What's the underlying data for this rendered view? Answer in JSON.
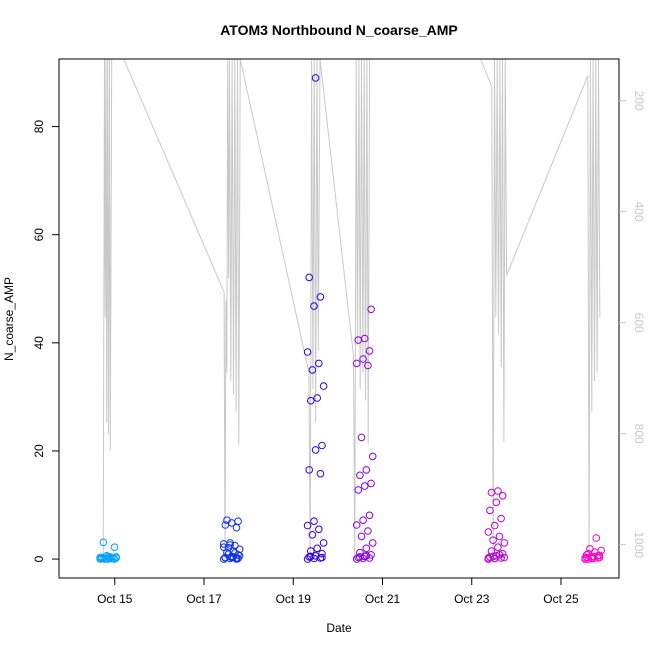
{
  "chart_data": {
    "type": "scatter",
    "title": "ATOM3 Northbound N_coarse_AMP",
    "xlabel": "Date",
    "ylabel": "N_coarse_AMP",
    "x_ticks": [
      {
        "day": 15,
        "label": "Oct 15"
      },
      {
        "day": 17,
        "label": "Oct 17"
      },
      {
        "day": 19,
        "label": "Oct 19"
      },
      {
        "day": 21,
        "label": "Oct 21"
      },
      {
        "day": 23,
        "label": "Oct 23"
      },
      {
        "day": 25,
        "label": "Oct 25"
      }
    ],
    "xlim": [
      13.75,
      26.3
    ],
    "ylim": [
      -3.5,
      92.5
    ],
    "y_ticks": [
      0,
      20,
      40,
      60,
      80
    ],
    "y2_label": "",
    "y2_lim": [
      1060,
      125
    ],
    "y2_ticks": [
      200,
      400,
      600,
      800,
      1000
    ],
    "altitude_color": "#c8c8c8",
    "groups": [
      {
        "day": 14.85,
        "color": "#00a0ff",
        "values": [
          0,
          0.1,
          0.2,
          0.3,
          0.5,
          0,
          0.1,
          0.2,
          0.4,
          0,
          0.1,
          0.3,
          0.6,
          0.2,
          0.1,
          0,
          2.2,
          3.1,
          0.4,
          0.2
        ]
      },
      {
        "day": 17.62,
        "color": "#1030e8",
        "values": [
          0,
          0.1,
          0.2,
          0.3,
          0.5,
          0.8,
          1.2,
          1.5,
          1.8,
          2.1,
          2.5,
          2.8,
          3.0,
          5.8,
          6.3,
          6.7,
          7.0,
          7.2,
          0.4,
          0.6,
          0.9,
          1.1,
          2.2,
          2.6,
          0,
          0.2,
          0.3,
          0.1
        ]
      },
      {
        "day": 19.5,
        "color": "#3000e0",
        "values": [
          0,
          0.1,
          0.2,
          0.4,
          0.6,
          1.0,
          1.5,
          2.0,
          3.0,
          4.5,
          5.5,
          6.2,
          7.0,
          15.8,
          16.5,
          20.2,
          21.0,
          29.3,
          29.8,
          32.0,
          35.0,
          36.2,
          38.3,
          46.8,
          48.5,
          52.1,
          89.0,
          0.3,
          0.5
        ]
      },
      {
        "day": 20.6,
        "color": "#8a00e8",
        "values": [
          0,
          0.1,
          0.2,
          0.3,
          0.5,
          0.8,
          1.2,
          2.0,
          3.0,
          4.2,
          5.2,
          6.3,
          7.2,
          8.1,
          12.8,
          13.5,
          14.0,
          15.5,
          16.5,
          19.0,
          22.5,
          35.8,
          36.2,
          37.0,
          38.5,
          40.5,
          40.8,
          46.2,
          0.4,
          0.6
        ]
      },
      {
        "day": 23.55,
        "color": "#b800d8",
        "values": [
          0,
          0.1,
          0.2,
          0.4,
          0.6,
          1.0,
          1.5,
          2.2,
          3.0,
          3.5,
          4.2,
          5.0,
          6.2,
          7.5,
          9.0,
          10.5,
          11.7,
          12.3,
          12.6,
          0.3,
          0.5,
          0.8,
          0.2,
          0.1
        ]
      },
      {
        "day": 25.72,
        "color": "#ff00c8",
        "values": [
          0,
          0.1,
          0.2,
          0.3,
          0.5,
          0.7,
          1.0,
          1.3,
          1.6,
          1.9,
          3.9,
          0.2,
          0.4,
          0.6,
          0.8,
          0.1,
          0.3,
          0
        ]
      }
    ],
    "altitude_track": [
      [
        14.74,
        1025
      ],
      [
        14.77,
        125
      ],
      [
        14.785,
        590
      ],
      [
        14.8,
        125
      ],
      [
        14.82,
        780
      ],
      [
        14.84,
        125
      ],
      [
        14.86,
        800
      ],
      [
        14.88,
        125
      ],
      [
        14.9,
        830
      ],
      [
        14.93,
        125
      ],
      [
        15.2,
        125
      ],
      [
        17.45,
        545
      ],
      [
        17.47,
        1030
      ],
      [
        17.49,
        560
      ],
      [
        17.51,
        690
      ],
      [
        17.53,
        125
      ],
      [
        17.55,
        520
      ],
      [
        17.57,
        125
      ],
      [
        17.6,
        705
      ],
      [
        17.63,
        125
      ],
      [
        17.66,
        730
      ],
      [
        17.69,
        125
      ],
      [
        17.72,
        760
      ],
      [
        17.75,
        125
      ],
      [
        17.78,
        820
      ],
      [
        17.81,
        125
      ],
      [
        19.35,
        690
      ],
      [
        19.38,
        1030
      ],
      [
        19.41,
        125
      ],
      [
        19.44,
        720
      ],
      [
        19.47,
        125
      ],
      [
        19.5,
        780
      ],
      [
        19.53,
        125
      ],
      [
        19.56,
        650
      ],
      [
        19.6,
        125
      ],
      [
        20.35,
        660
      ],
      [
        20.38,
        1030
      ],
      [
        20.41,
        125
      ],
      [
        20.44,
        640
      ],
      [
        20.47,
        125
      ],
      [
        20.5,
        720
      ],
      [
        20.53,
        125
      ],
      [
        20.56,
        690
      ],
      [
        20.59,
        125
      ],
      [
        20.62,
        740
      ],
      [
        20.65,
        125
      ],
      [
        20.68,
        820
      ],
      [
        20.71,
        125
      ],
      [
        23.2,
        125
      ],
      [
        23.45,
        175
      ],
      [
        23.48,
        1030
      ],
      [
        23.51,
        125
      ],
      [
        23.54,
        590
      ],
      [
        23.57,
        125
      ],
      [
        23.6,
        620
      ],
      [
        23.63,
        125
      ],
      [
        23.66,
        680
      ],
      [
        23.69,
        125
      ],
      [
        23.72,
        815
      ],
      [
        23.75,
        125
      ],
      [
        23.78,
        515
      ],
      [
        25.6,
        155
      ],
      [
        25.63,
        1030
      ],
      [
        25.66,
        125
      ],
      [
        25.69,
        760
      ],
      [
        25.72,
        125
      ],
      [
        25.75,
        705
      ],
      [
        25.78,
        125
      ],
      [
        25.81,
        690
      ],
      [
        25.84,
        125
      ],
      [
        25.87,
        590
      ]
    ]
  }
}
